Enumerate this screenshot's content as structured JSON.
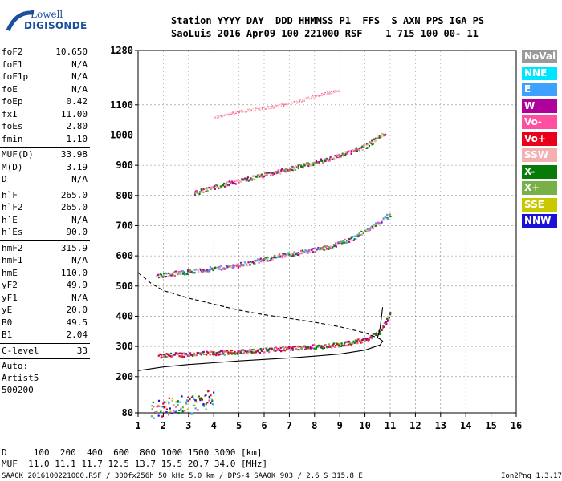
{
  "logo": {
    "line1": "Lowell",
    "line2": "DIGISONDE"
  },
  "header": {
    "line1": "Station YYYY DAY  DDD HHMMSS P1  FFS  S AXN PPS IGA PS",
    "line2": "SaoLuis 2016 Apr09 100 221000 RSF    1 715 100 00- 11"
  },
  "params": {
    "group1": [
      [
        "foF2",
        "10.650"
      ],
      [
        "foF1",
        "N/A"
      ],
      [
        "foF1p",
        "N/A"
      ],
      [
        "foE",
        "N/A"
      ],
      [
        "foEp",
        "0.42"
      ],
      [
        "fxI",
        "11.00"
      ],
      [
        "foEs",
        "2.80"
      ],
      [
        "fmin",
        "1.10"
      ]
    ],
    "group2": [
      [
        "MUF(D)",
        "33.98"
      ],
      [
        "M(D)",
        "3.19"
      ],
      [
        "D",
        "N/A"
      ]
    ],
    "group3": [
      [
        "h`F",
        "265.0"
      ],
      [
        "h`F2",
        "265.0"
      ],
      [
        "h`E",
        "N/A"
      ],
      [
        "h`Es",
        "90.0"
      ]
    ],
    "group4": [
      [
        "hmF2",
        "315.9"
      ],
      [
        "hmF1",
        "N/A"
      ],
      [
        "hmE",
        "110.0"
      ],
      [
        "yF2",
        "49.9"
      ],
      [
        "yF1",
        "N/A"
      ],
      [
        "yE",
        "20.0"
      ],
      [
        "B0",
        "49.5"
      ],
      [
        "B1",
        "2.04"
      ]
    ],
    "group5": [
      [
        "C-level",
        "33"
      ]
    ],
    "autoscaling": [
      "Auto:",
      "Artist5",
      "500200"
    ]
  },
  "legend": [
    {
      "label": "NoVal",
      "color": "#9a9a9a"
    },
    {
      "label": "NNE",
      "color": "#00e5ff"
    },
    {
      "label": "E",
      "color": "#3ea0ff"
    },
    {
      "label": "W",
      "color": "#b0009a"
    },
    {
      "label": "Vo-",
      "color": "#ff4fa0"
    },
    {
      "label": "Vo+",
      "color": "#e8001a"
    },
    {
      "label": "SSW",
      "color": "#f4b0b0"
    },
    {
      "label": "X-",
      "color": "#087a08"
    },
    {
      "label": "X+",
      "color": "#78b048"
    },
    {
      "label": "SSE",
      "color": "#c8c800"
    },
    {
      "label": "NNW",
      "color": "#1a10d8"
    }
  ],
  "footer": {
    "d_line": "D     100  200  400  600  800 1000 1500 3000 [km]",
    "muf_line": "MUF  11.0 11.1 11.7 12.5 13.7 15.5 20.7 34.0 [MHz]",
    "file_line": "SAA0K_2016100221000.RSF / 300fx256h 50 kHz 5.0 km / DPS-4 SAA0K 903 / 2.6 S 315.8 E",
    "version": "Ion2Png 1.3.17"
  },
  "chart_data": {
    "type": "scatter",
    "title": "",
    "xlabel": "",
    "ylabel": "",
    "xlim": [
      1,
      16
    ],
    "ylim": [
      80,
      1280
    ],
    "x_ticks": [
      1,
      2,
      3,
      4,
      5,
      6,
      7,
      8,
      9,
      10,
      11,
      12,
      13,
      14,
      15,
      16
    ],
    "y_ticks": [
      80,
      200,
      300,
      400,
      500,
      600,
      700,
      800,
      900,
      1000,
      1100,
      1280
    ],
    "grid": true,
    "series": [
      {
        "name": "traces-1hop",
        "points": [
          [
            1.8,
            270
          ],
          [
            2.5,
            275
          ],
          [
            3.5,
            278
          ],
          [
            4.5,
            282
          ],
          [
            5.5,
            287
          ],
          [
            6.5,
            293
          ],
          [
            7.5,
            299
          ],
          [
            8.5,
            305
          ],
          [
            9.5,
            315
          ],
          [
            10.0,
            325
          ],
          [
            10.5,
            345
          ],
          [
            10.8,
            380
          ],
          [
            11.0,
            420
          ]
        ]
      },
      {
        "name": "traces-2hop",
        "points": [
          [
            1.7,
            535
          ],
          [
            2.5,
            545
          ],
          [
            3.5,
            555
          ],
          [
            4.5,
            565
          ],
          [
            5.5,
            580
          ],
          [
            6.5,
            600
          ],
          [
            7.5,
            615
          ],
          [
            8.5,
            630
          ],
          [
            9.5,
            660
          ],
          [
            10.3,
            700
          ],
          [
            11.0,
            740
          ]
        ]
      },
      {
        "name": "traces-3hop",
        "points": [
          [
            3.2,
            810
          ],
          [
            4.0,
            830
          ],
          [
            5.0,
            850
          ],
          [
            6.0,
            870
          ],
          [
            7.0,
            890
          ],
          [
            8.0,
            910
          ],
          [
            9.0,
            935
          ],
          [
            10.0,
            965
          ],
          [
            10.8,
            1010
          ]
        ]
      },
      {
        "name": "traces-4hop",
        "points": [
          [
            4.0,
            1060
          ],
          [
            5.0,
            1080
          ],
          [
            6.0,
            1090
          ],
          [
            7.0,
            1105
          ],
          [
            8.0,
            1130
          ],
          [
            9.0,
            1150
          ]
        ]
      },
      {
        "name": "traces-Es",
        "points": [
          [
            1.5,
            90
          ],
          [
            2.0,
            100
          ],
          [
            2.5,
            110
          ],
          [
            3.0,
            105
          ],
          [
            3.5,
            120
          ],
          [
            4.0,
            135
          ]
        ]
      }
    ],
    "profiles": [
      {
        "name": "profile-solid",
        "style": "solid",
        "points": [
          [
            1.0,
            220
          ],
          [
            2.0,
            232
          ],
          [
            3.0,
            240
          ],
          [
            4.0,
            246
          ],
          [
            5.0,
            252
          ],
          [
            6.0,
            257
          ],
          [
            7.0,
            262
          ],
          [
            8.0,
            268
          ],
          [
            9.0,
            275
          ],
          [
            10.0,
            288
          ],
          [
            10.6,
            305
          ],
          [
            10.7,
            318
          ],
          [
            10.5,
            330
          ],
          [
            10.6,
            360
          ],
          [
            10.7,
            430
          ]
        ]
      },
      {
        "name": "profile-dashed",
        "style": "dashed",
        "points": [
          [
            1.0,
            545
          ],
          [
            1.5,
            510
          ],
          [
            2.0,
            485
          ],
          [
            3.0,
            460
          ],
          [
            4.0,
            440
          ],
          [
            5.0,
            420
          ],
          [
            6.0,
            405
          ],
          [
            7.0,
            393
          ],
          [
            8.0,
            380
          ],
          [
            9.0,
            365
          ],
          [
            10.0,
            345
          ],
          [
            10.6,
            325
          ]
        ]
      }
    ]
  }
}
